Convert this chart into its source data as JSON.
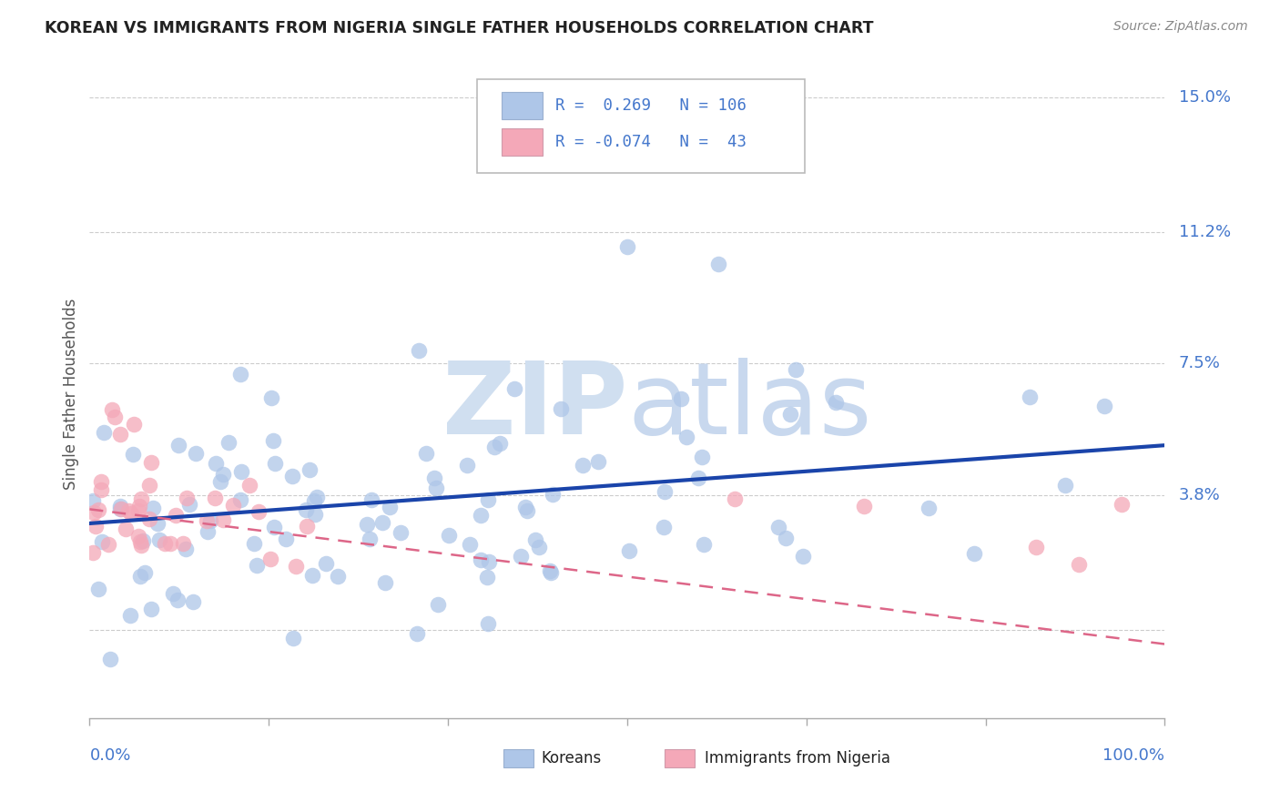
{
  "title": "KOREAN VS IMMIGRANTS FROM NIGERIA SINGLE FATHER HOUSEHOLDS CORRELATION CHART",
  "source": "Source: ZipAtlas.com",
  "ylabel": "Single Father Households",
  "yticks": [
    0.0,
    0.038,
    0.075,
    0.112,
    0.15
  ],
  "ytick_labels": [
    "",
    "3.8%",
    "7.5%",
    "11.2%",
    "15.0%"
  ],
  "xlim": [
    0.0,
    1.0
  ],
  "ylim": [
    -0.025,
    0.158
  ],
  "korean_color": "#aec6e8",
  "nigeria_color": "#f4a8b8",
  "trend_korean_color": "#1a44aa",
  "trend_nigeria_color": "#dd6688",
  "background_color": "#ffffff",
  "grid_color": "#cccccc",
  "axis_label_color": "#4477cc",
  "watermark_color": "#d0dff0",
  "R_korean": 0.269,
  "N_korean": 106,
  "R_nigeria": -0.074,
  "N_nigeria": 43
}
